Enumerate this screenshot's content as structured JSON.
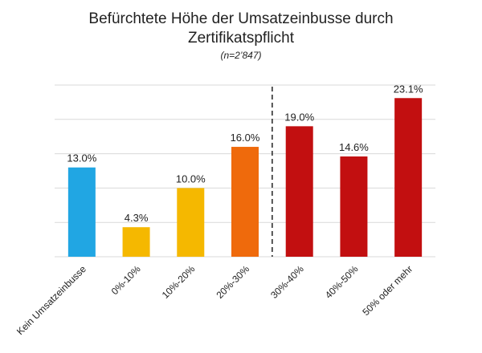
{
  "chart_data": {
    "type": "bar",
    "title_line1": "Befürchtete Höhe der Umsatzeinbusse durch",
    "title_line2": "Zertifikatspflicht",
    "subtitle": "(n=2’847)",
    "categories": [
      "Kein Umsatzeinbusse",
      "0%-10%",
      "10%-20%",
      "20%-30%",
      "30%-40%",
      "40%-50%",
      "50% oder mehr"
    ],
    "values": [
      13.0,
      4.3,
      10.0,
      16.0,
      19.0,
      14.6,
      23.1
    ],
    "data_labels": [
      "13.0%",
      "4.3%",
      "10.0%",
      "16.0%",
      "19.0%",
      "14.6%",
      "23.1%"
    ],
    "colors": [
      "#21a6e3",
      "#f5b800",
      "#f5b800",
      "#ef6a0c",
      "#c20f10",
      "#c20f10",
      "#c20f10"
    ],
    "ylim": [
      0,
      25
    ],
    "grid": true,
    "gridline_values": [
      0,
      5,
      10,
      15,
      20,
      25
    ],
    "divider_after_index": 3,
    "xlabel": "",
    "ylabel": ""
  }
}
